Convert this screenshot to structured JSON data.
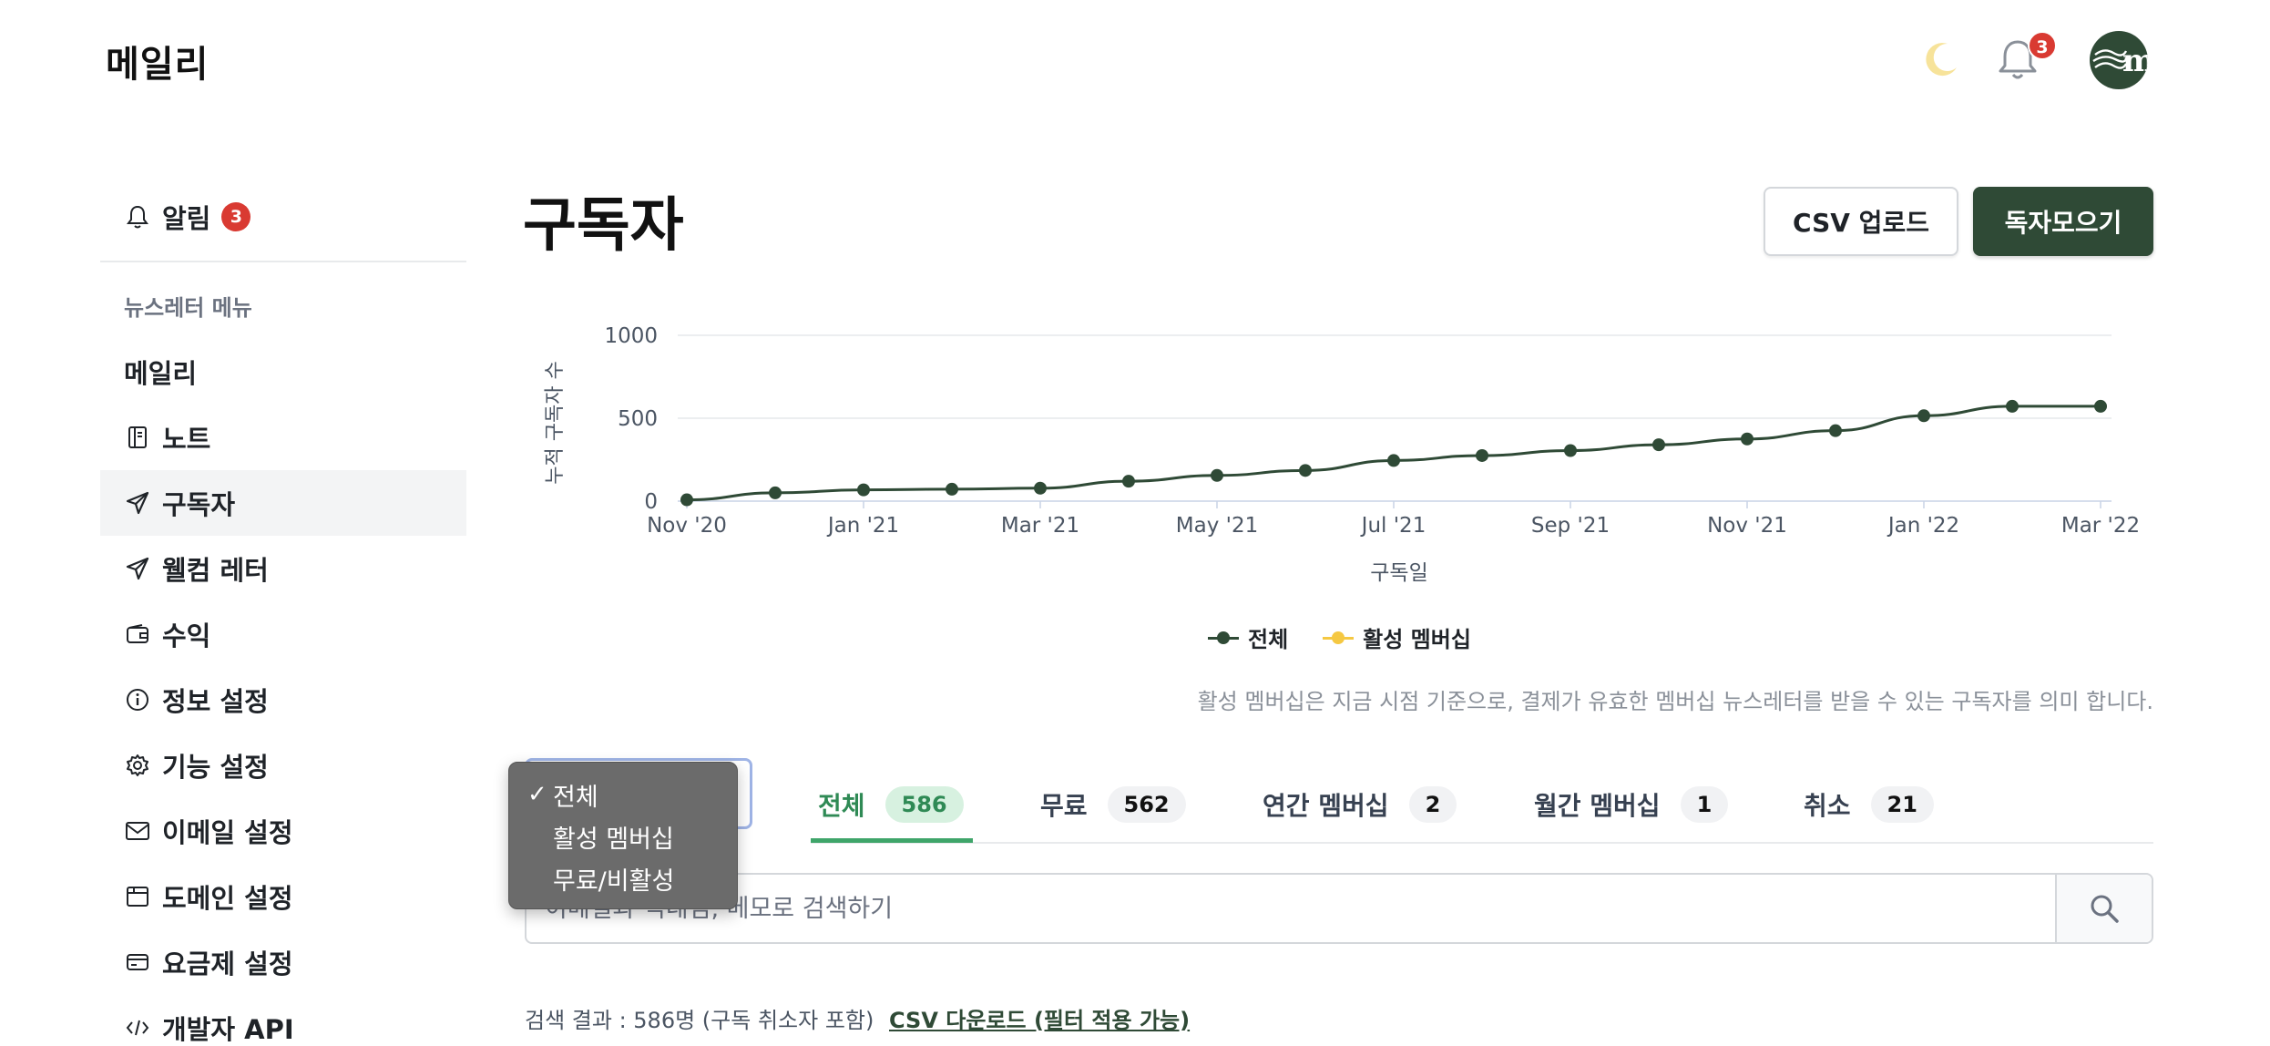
{
  "header": {
    "logo": "메일리",
    "notification_count": "3",
    "avatar_letter": "m"
  },
  "sidebar": {
    "alarm_label": "알림",
    "alarm_count": "3",
    "section_title": "뉴스레터 메뉴",
    "items": [
      {
        "label": "메일리",
        "icon": "none"
      },
      {
        "label": "노트",
        "icon": "notebook-icon"
      },
      {
        "label": "구독자",
        "icon": "send-icon",
        "active": true
      },
      {
        "label": "웰컴 레터",
        "icon": "send-icon"
      },
      {
        "label": "수익",
        "icon": "wallet-icon"
      },
      {
        "label": "정보 설정",
        "icon": "info-icon"
      },
      {
        "label": "기능 설정",
        "icon": "gear-icon"
      },
      {
        "label": "이메일 설정",
        "icon": "mail-icon"
      },
      {
        "label": "도메인 설정",
        "icon": "browser-icon"
      },
      {
        "label": "요금제 설정",
        "icon": "card-icon"
      },
      {
        "label": "개발자 API",
        "icon": "code-icon"
      }
    ]
  },
  "main": {
    "title": "구독자",
    "csv_upload_label": "CSV 업로드",
    "collect_label": "독자모으기",
    "note": "활성 멤버십은 지금 시점 기준으로, 결제가 유효한 멤버십 뉴스레터를 받을 수 있는 구독자를 의미 합니다.",
    "filter": {
      "options": [
        "전체",
        "활성 멤버십",
        "무료/비활성"
      ],
      "selected": "전체"
    },
    "tabs": [
      {
        "label": "전체",
        "count": "586"
      },
      {
        "label": "무료",
        "count": "562"
      },
      {
        "label": "연간 멤버십",
        "count": "2"
      },
      {
        "label": "월간 멤버십",
        "count": "1"
      },
      {
        "label": "취소",
        "count": "21"
      }
    ],
    "search_placeholder": "이메일과 닉네임, 메모로 검색하기",
    "result_text": "검색 결과 : 586명 (구독 취소자 포함)",
    "csv_download_label": "CSV 다운로드 (필터 적용 가능)"
  },
  "colors": {
    "primary": "#2f4a36",
    "accent_green": "#3fa56a",
    "badge_red": "#d93a32",
    "membership_yellow": "#f5c842"
  },
  "chart_data": {
    "type": "line",
    "title": "",
    "xlabel": "구독일",
    "ylabel": "누적 구독자 수",
    "ylim": [
      0,
      1000
    ],
    "yticks": [
      "0",
      "500",
      "1000"
    ],
    "x_tick_labels": [
      "Nov '20",
      "Jan '21",
      "Mar '21",
      "May '21",
      "Jul '21",
      "Sep '21",
      "Nov '21",
      "Jan '22",
      "Mar '22"
    ],
    "x": [
      "2020-11",
      "2020-12",
      "2021-01",
      "2021-02",
      "2021-03",
      "2021-04",
      "2021-05",
      "2021-06",
      "2021-07",
      "2021-08",
      "2021-09",
      "2021-10",
      "2021-11",
      "2021-12",
      "2022-01",
      "2022-02",
      "2022-03"
    ],
    "series": [
      {
        "name": "전체",
        "color": "#2f4a36",
        "values": [
          8,
          50,
          68,
          72,
          78,
          120,
          155,
          185,
          245,
          275,
          305,
          340,
          375,
          425,
          515,
          572,
          572
        ]
      },
      {
        "name": "활성 멤버십",
        "color": "#f5c842",
        "values": [
          0,
          0,
          0,
          0,
          0,
          0,
          0,
          0,
          0,
          0,
          0,
          0,
          0,
          0,
          0,
          0,
          0
        ]
      }
    ],
    "legend": "bottom-center",
    "grid": true
  }
}
